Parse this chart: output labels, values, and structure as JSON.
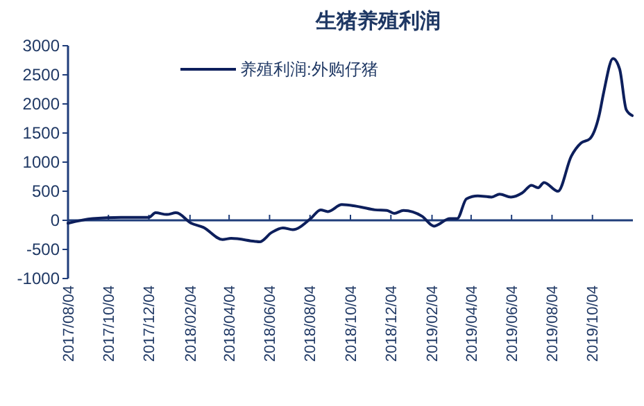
{
  "chart_data": {
    "type": "line",
    "title": "生猪养殖利润",
    "legend": "top",
    "grid": false,
    "xlim": [
      "2017-08-04",
      "2019-12-04"
    ],
    "xticks": [
      {
        "value": "2017-08-04",
        "label": "2017/08/04"
      },
      {
        "value": "2017-10-04",
        "label": "2017/10/04"
      },
      {
        "value": "2017-12-04",
        "label": "2017/12/04"
      },
      {
        "value": "2018-02-04",
        "label": "2018/02/04"
      },
      {
        "value": "2018-04-04",
        "label": "2018/04/04"
      },
      {
        "value": "2018-06-04",
        "label": "2018/06/04"
      },
      {
        "value": "2018-08-04",
        "label": "2018/08/04"
      },
      {
        "value": "2018-10-04",
        "label": "2018/10/04"
      },
      {
        "value": "2018-12-04",
        "label": "2018/12/04"
      },
      {
        "value": "2019-02-04",
        "label": "2019/02/04"
      },
      {
        "value": "2019-04-04",
        "label": "2019/04/04"
      },
      {
        "value": "2019-06-04",
        "label": "2019/06/04"
      },
      {
        "value": "2019-08-04",
        "label": "2019/08/04"
      },
      {
        "value": "2019-10-04",
        "label": "2019/10/04"
      }
    ],
    "ref_lines": [
      {
        "axis": "y",
        "value": 0,
        "color": "#1f3d7a"
      }
    ],
    "ylim": [
      -1000,
      3000
    ],
    "yticks": [
      -1000,
      -500,
      0,
      500,
      1000,
      1500,
      2000,
      2500,
      3000
    ],
    "series": [
      {
        "name": "养殖利润:外购仔猪",
        "color": "#0d1f5c",
        "x": [
          "2017-08-04",
          "2017-09-10",
          "2017-10-23",
          "2017-12-04",
          "2017-12-14",
          "2017-12-31",
          "2018-01-14",
          "2018-02-06",
          "2018-02-24",
          "2018-03-25",
          "2018-04-07",
          "2018-05-12",
          "2018-05-20",
          "2018-06-07",
          "2018-06-24",
          "2018-07-09",
          "2018-08-05",
          "2018-08-20",
          "2018-08-31",
          "2018-09-21",
          "2018-10-19",
          "2018-11-10",
          "2018-11-28",
          "2018-12-09",
          "2018-12-23",
          "2019-01-20",
          "2019-02-07",
          "2019-03-03",
          "2019-03-14",
          "2019-03-28",
          "2019-04-14",
          "2019-05-05",
          "2019-05-17",
          "2019-06-03",
          "2019-06-20",
          "2019-07-04",
          "2019-07-14",
          "2019-07-23",
          "2019-08-13",
          "2019-09-02",
          "2019-09-17",
          "2019-09-30",
          "2019-10-14",
          "2019-10-21",
          "2019-11-04",
          "2019-11-14",
          "2019-11-24",
          "2019-12-03"
        ],
        "values": [
          -50,
          30,
          50,
          50,
          130,
          100,
          130,
          -50,
          -120,
          -330,
          -310,
          -360,
          -370,
          -210,
          -130,
          -160,
          30,
          180,
          150,
          270,
          230,
          180,
          170,
          120,
          170,
          70,
          -100,
          30,
          30,
          370,
          420,
          400,
          450,
          400,
          470,
          600,
          560,
          650,
          500,
          1100,
          1330,
          1400,
          1800,
          2200,
          2780,
          2600,
          1900,
          1800
        ]
      }
    ]
  }
}
